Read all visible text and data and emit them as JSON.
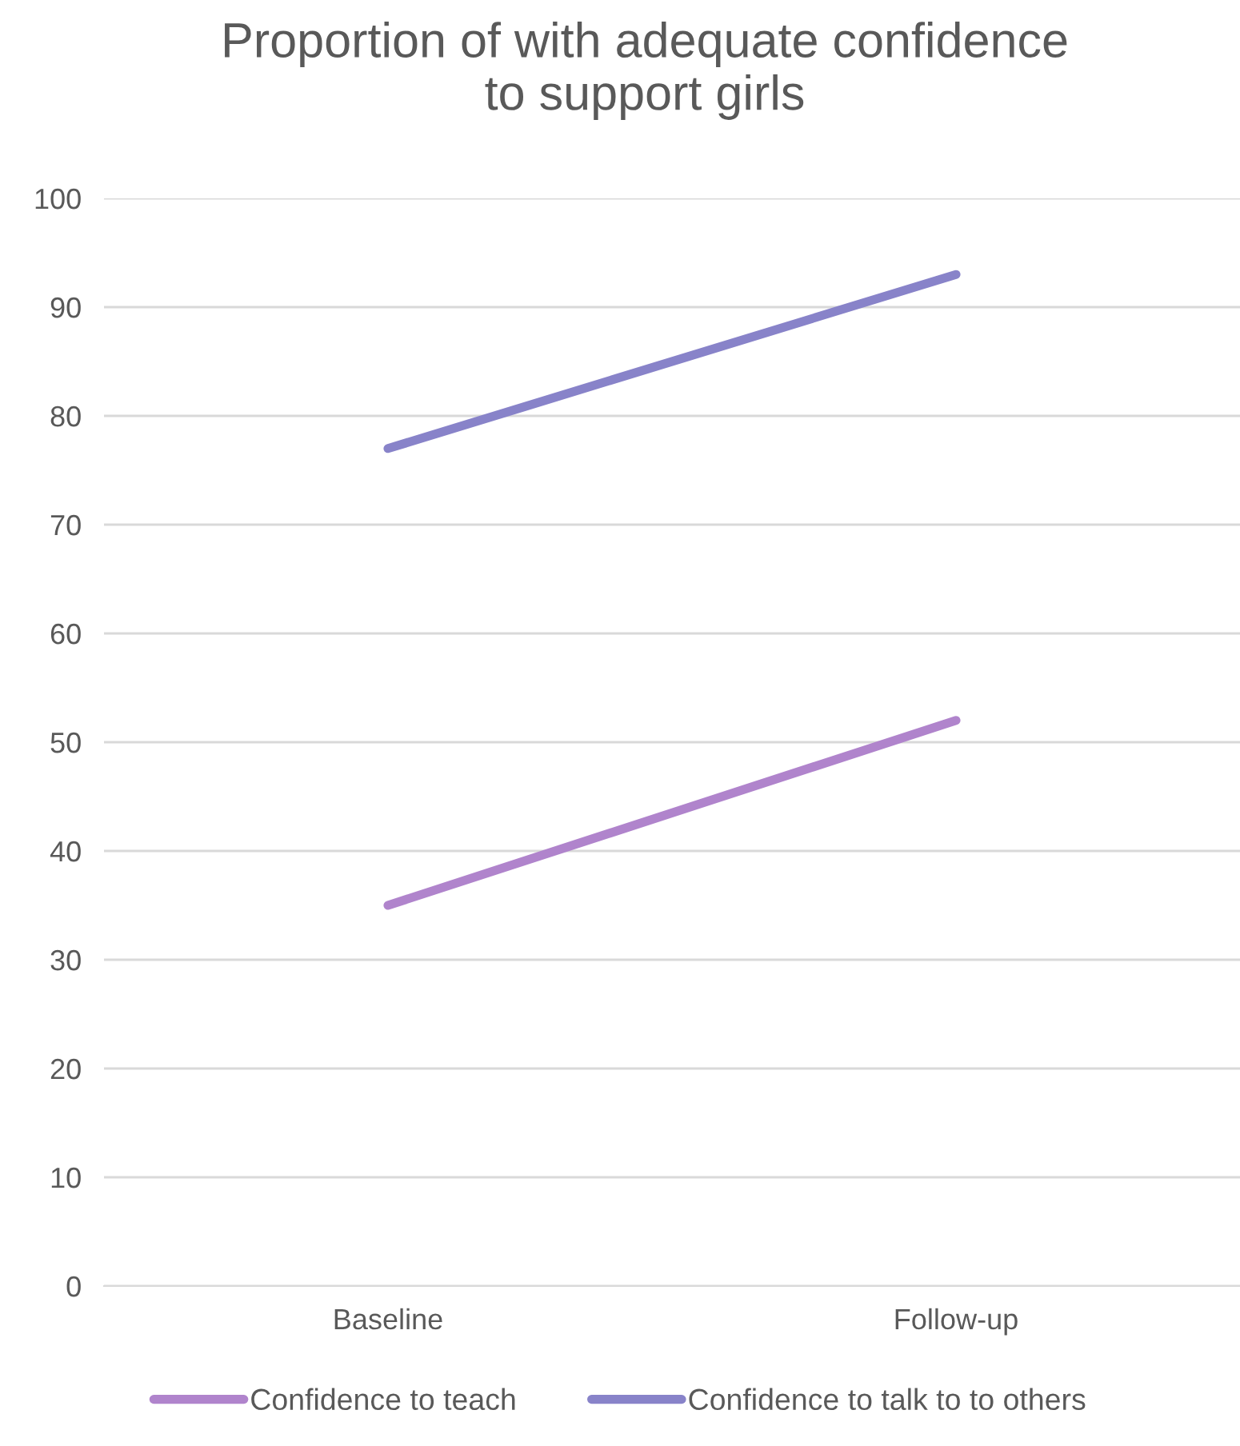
{
  "chart_data": {
    "type": "line",
    "title": "Proportion of with adequate confidence\nto support girls",
    "categories": [
      "Baseline",
      "Follow-up"
    ],
    "series": [
      {
        "name": "Confidence to teach",
        "color": "#b084cc",
        "values": [
          35,
          52
        ]
      },
      {
        "name": "Confidence to talk to to others",
        "color": "#8883c9",
        "values": [
          77,
          93
        ]
      }
    ],
    "ylim": [
      0,
      100
    ],
    "yticks": [
      0,
      10,
      20,
      30,
      40,
      50,
      60,
      70,
      80,
      90,
      100
    ],
    "grid": "y",
    "legend": "bottom",
    "marker": "none",
    "line_style": "solid"
  }
}
